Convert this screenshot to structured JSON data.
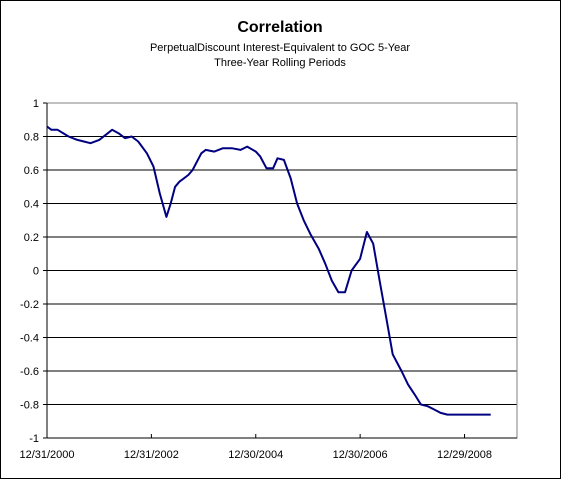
{
  "chart_data": {
    "type": "line",
    "title": "Correlation",
    "subtitle_lines": [
      "PerpetualDiscount Interest-Equivalent to GOC 5-Year",
      "Three-Year Rolling Periods"
    ],
    "xlabel": "",
    "ylabel": "",
    "ylim": [
      -1,
      1
    ],
    "y_ticks": [
      1,
      0.8,
      0.6,
      0.4,
      0.2,
      0,
      -0.2,
      -0.4,
      -0.6,
      -0.8,
      -1
    ],
    "x_range": [
      "12/31/2000",
      "12/31/2009"
    ],
    "x_ticks": [
      "12/31/2000",
      "12/31/2002",
      "12/30/2004",
      "12/30/2006",
      "12/29/2008"
    ],
    "grid": "horizontal",
    "legend": "none",
    "colors": {
      "line": "#000080",
      "grid": "#000000",
      "background": "#ffffff"
    },
    "series": [
      {
        "x": [
          "2000-12-31",
          "2001-01-31",
          "2001-03-15",
          "2001-05-31",
          "2001-07-31",
          "2001-09-15",
          "2001-10-31",
          "2001-12-31",
          "2002-02-15",
          "2002-03-31",
          "2002-05-15",
          "2002-06-30",
          "2002-08-15",
          "2002-09-30",
          "2002-11-30",
          "2003-01-15",
          "2003-02-28",
          "2003-04-15",
          "2003-05-15",
          "2003-06-15",
          "2003-07-15",
          "2003-08-15",
          "2003-09-15",
          "2003-10-15",
          "2003-12-15",
          "2004-01-15",
          "2004-03-15",
          "2004-05-15",
          "2004-07-15",
          "2004-09-15",
          "2004-10-31",
          "2004-12-30",
          "2005-01-31",
          "2005-03-15",
          "2005-04-30",
          "2005-05-31",
          "2005-07-15",
          "2005-08-31",
          "2005-10-15",
          "2005-11-30",
          "2006-01-15",
          "2006-03-15",
          "2006-04-30",
          "2006-06-15",
          "2006-07-31",
          "2006-09-15",
          "2006-10-31",
          "2006-12-30",
          "2007-02-15",
          "2007-03-31",
          "2007-05-15",
          "2007-06-30",
          "2007-08-15",
          "2007-10-15",
          "2007-11-30",
          "2008-01-15",
          "2008-02-28",
          "2008-04-15",
          "2008-05-31",
          "2008-07-15",
          "2008-08-31",
          "2008-10-15",
          "2008-11-30",
          "2009-02-15",
          "2009-04-15",
          "2009-06-30"
        ],
        "values": [
          0.86,
          0.84,
          0.84,
          0.8,
          0.78,
          0.77,
          0.76,
          0.78,
          0.81,
          0.84,
          0.82,
          0.79,
          0.8,
          0.77,
          0.7,
          0.62,
          0.46,
          0.32,
          0.4,
          0.5,
          0.53,
          0.55,
          0.57,
          0.6,
          0.7,
          0.72,
          0.71,
          0.73,
          0.73,
          0.72,
          0.74,
          0.71,
          0.68,
          0.61,
          0.61,
          0.67,
          0.66,
          0.55,
          0.4,
          0.3,
          0.22,
          0.13,
          0.04,
          -0.06,
          -0.13,
          -0.13,
          0.0,
          0.07,
          0.23,
          0.16,
          -0.06,
          -0.28,
          -0.5,
          -0.6,
          -0.68,
          -0.74,
          -0.8,
          -0.81,
          -0.83,
          -0.85,
          -0.86,
          -0.86,
          -0.86,
          -0.86,
          -0.86,
          -0.86
        ]
      }
    ]
  }
}
